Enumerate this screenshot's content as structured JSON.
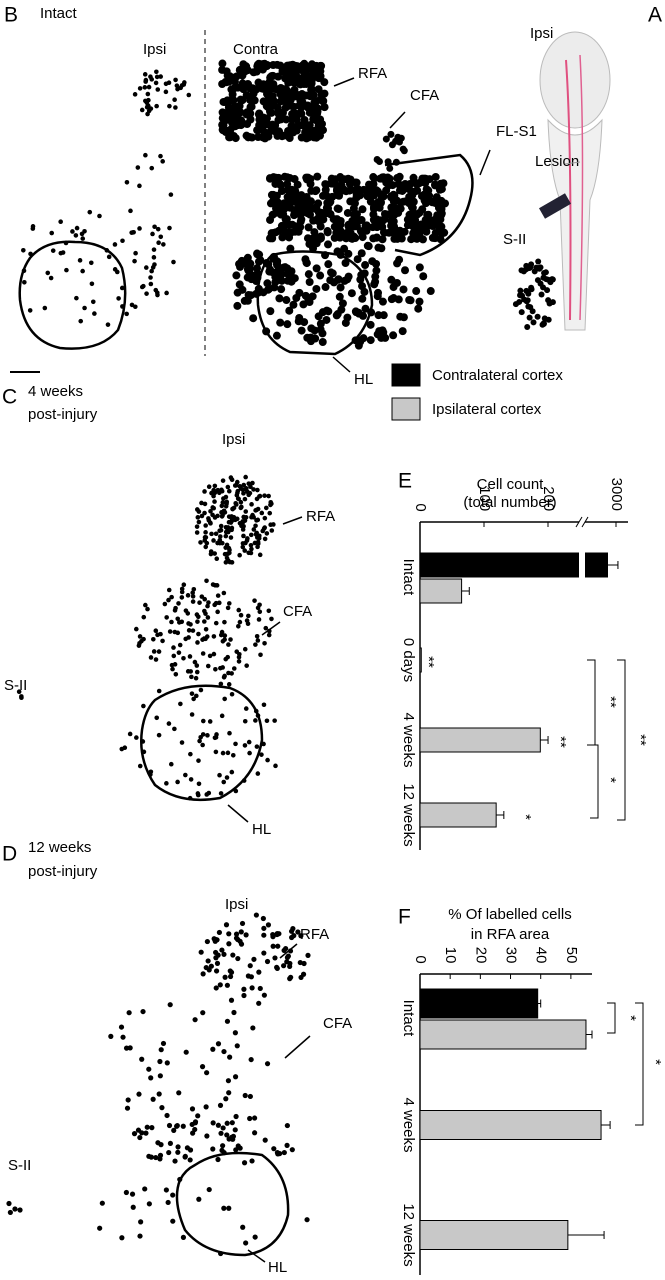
{
  "panels": {
    "B": {
      "label": "B",
      "title": "Intact",
      "ipsi": "Ipsi",
      "contra": "Contra",
      "rfa": "RFA",
      "cfa": "CFA",
      "fls1": "FL-S1",
      "hl": "HL"
    },
    "A": {
      "label": "A",
      "ipsi": "Ipsi",
      "lesion": "Lesion",
      "s2": "S-II"
    },
    "C": {
      "label": "C",
      "title1": "4 weeks",
      "title2": "post-injury",
      "ipsi": "Ipsi",
      "rfa": "RFA",
      "cfa": "CFA",
      "s2": "S-II",
      "hl": "HL"
    },
    "D": {
      "label": "D",
      "title1": "12 weeks",
      "title2": "post-injury",
      "ipsi": "Ipsi",
      "rfa": "RFA",
      "cfa": "CFA",
      "s2": "S-II",
      "hl": "HL"
    }
  },
  "chart_data": [
    {
      "type": "bar",
      "label": "E",
      "title": [
        "Cell count",
        "(total number)"
      ],
      "categories": [
        "Intact",
        "0 days",
        "4 weeks",
        "12 weeks"
      ],
      "series": [
        {
          "name": "Contralateral cortex",
          "color": "#000000",
          "values": [
            2650,
            null,
            null,
            null
          ],
          "errors": [
            430,
            null,
            null,
            null
          ]
        },
        {
          "name": "Ipsilateral cortex",
          "color": "#c8c8c8",
          "values": [
            65,
            2,
            188,
            119
          ],
          "errors": [
            12,
            null,
            14,
            12
          ]
        }
      ],
      "xlim": [
        0,
        3000
      ],
      "xticks": [
        0,
        100,
        200,
        3000
      ],
      "axis_break": true,
      "annotations": [
        "**",
        "**",
        "*",
        "**",
        "**",
        "*"
      ]
    },
    {
      "type": "bar",
      "label": "F",
      "title": [
        "% Of labelled cells",
        "in RFA area"
      ],
      "categories": [
        "Intact",
        "4 weeks",
        "12 weeks"
      ],
      "series": [
        {
          "name": "Contralateral cortex",
          "color": "#000000",
          "values": [
            39,
            null,
            null
          ],
          "errors": [
            1,
            null,
            null
          ]
        },
        {
          "name": "Ipsilateral cortex",
          "color": "#c8c8c8",
          "values": [
            55,
            60,
            49
          ],
          "errors": [
            2,
            3,
            12
          ]
        }
      ],
      "xlim": [
        0,
        57
      ],
      "xticks": [
        0,
        10,
        20,
        30,
        40,
        50
      ],
      "axis_break": false,
      "annotations": [
        "*",
        "*"
      ]
    }
  ]
}
